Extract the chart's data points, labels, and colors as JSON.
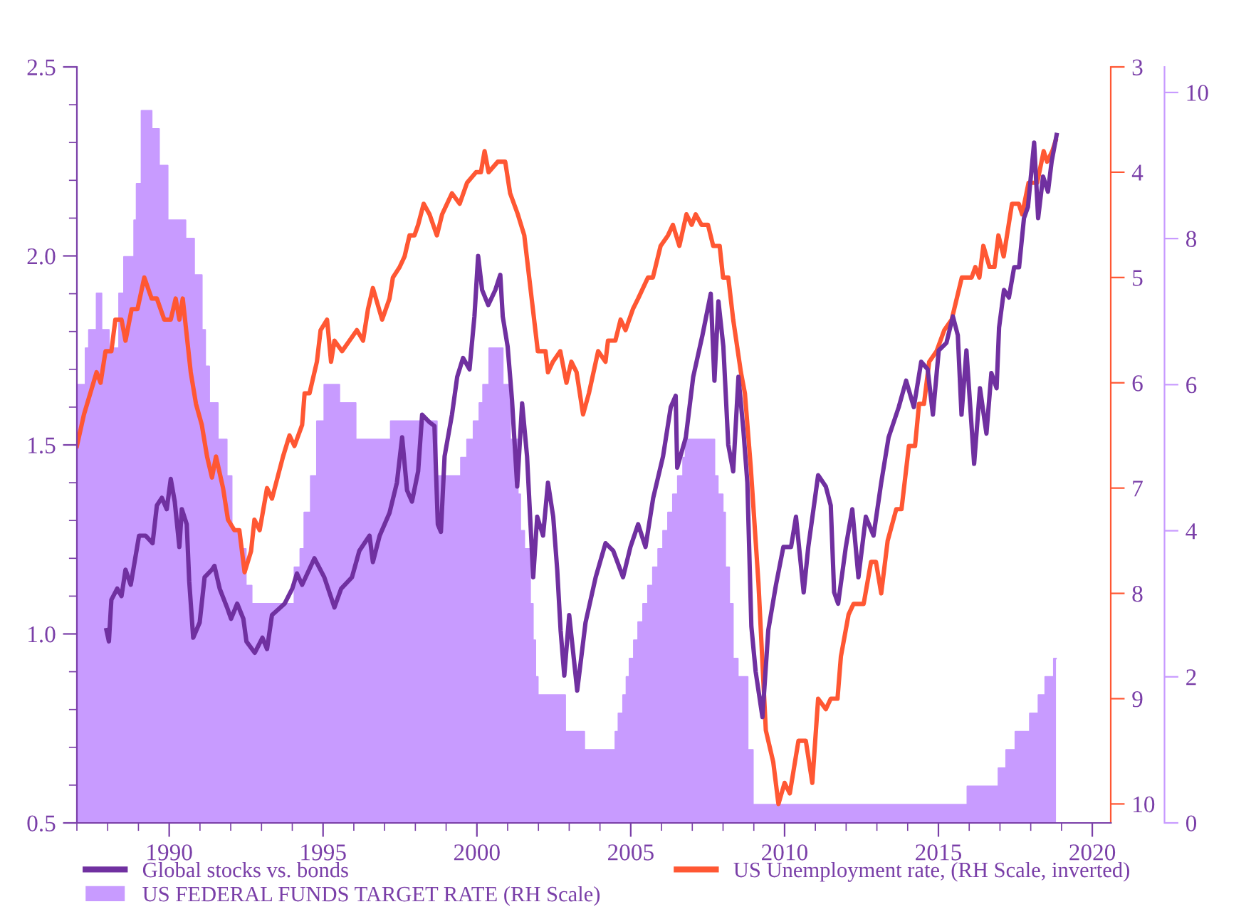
{
  "chart_data": {
    "type": "line",
    "xlim": [
      1987,
      2020.6
    ],
    "xticks": [
      {
        "value": 1987,
        "label": null
      },
      {
        "value": 1988,
        "label": null
      },
      {
        "value": 1989,
        "label": null
      },
      1990,
      {
        "value": 1991,
        "label": null
      },
      {
        "value": 1992,
        "label": null
      },
      {
        "value": 1993,
        "label": null
      },
      {
        "value": 1994,
        "label": null
      },
      1995,
      {
        "value": 1996,
        "label": null
      },
      {
        "value": 1997,
        "label": null
      },
      {
        "value": 1998,
        "label": null
      },
      {
        "value": 1999,
        "label": null
      },
      2000,
      {
        "value": 2001,
        "label": null
      },
      {
        "value": 2002,
        "label": null
      },
      {
        "value": 2003,
        "label": null
      },
      {
        "value": 2004,
        "label": null
      },
      2005,
      {
        "value": 2006,
        "label": null
      },
      {
        "value": 2007,
        "label": null
      },
      {
        "value": 2008,
        "label": null
      },
      {
        "value": 2009,
        "label": null
      },
      2010,
      {
        "value": 2011,
        "label": null
      },
      {
        "value": 2012,
        "label": null
      },
      {
        "value": 2013,
        "label": null
      },
      {
        "value": 2014,
        "label": null
      },
      2015,
      {
        "value": 2016,
        "label": null
      },
      {
        "value": 2017,
        "label": null
      },
      {
        "value": 2018,
        "label": null
      },
      {
        "value": 2019,
        "label": null
      },
      2020
    ],
    "ylim": [
      0.5,
      2.5
    ],
    "yticks": [
      {
        "value": 0.5,
        "label": "0.5"
      },
      {
        "value": 0.6,
        "label": null
      },
      {
        "value": 0.7,
        "label": null
      },
      {
        "value": 0.8,
        "label": null
      },
      {
        "value": 0.9,
        "label": null
      },
      {
        "value": 1.0,
        "label": "1.0"
      },
      {
        "value": 1.1,
        "label": null
      },
      {
        "value": 1.2,
        "label": null
      },
      {
        "value": 1.3,
        "label": null
      },
      {
        "value": 1.4,
        "label": null
      },
      {
        "value": 1.5,
        "label": "1.5"
      },
      {
        "value": 1.6,
        "label": null
      },
      {
        "value": 1.7,
        "label": null
      },
      {
        "value": 1.8,
        "label": null
      },
      {
        "value": 1.9,
        "label": null
      },
      {
        "value": 2.0,
        "label": "2.0"
      },
      {
        "value": 2.1,
        "label": null
      },
      {
        "value": 2.2,
        "label": null
      },
      {
        "value": 2.3,
        "label": null
      },
      {
        "value": 2.4,
        "label": null
      },
      {
        "value": 2.5,
        "label": "2.5"
      }
    ],
    "y2lim": [
      10.18,
      3
    ],
    "y2ticks": [
      3,
      4,
      5,
      6,
      7,
      8,
      9,
      10
    ],
    "y3lim": [
      0,
      10.35
    ],
    "y3ticks": [
      0,
      2,
      4,
      6,
      8,
      10
    ],
    "grid": false,
    "legend": "bottom",
    "series": [
      {
        "name": "Global stocks vs. bonds",
        "color": "#7030a0",
        "axis": "y",
        "x": [
          1987.96,
          1988.04,
          1988.12,
          1988.31,
          1988.45,
          1988.58,
          1988.75,
          1989.02,
          1989.23,
          1989.46,
          1989.6,
          1989.76,
          1989.92,
          1990.05,
          1990.18,
          1990.33,
          1990.41,
          1990.57,
          1990.65,
          1990.78,
          1990.99,
          1991.15,
          1991.39,
          1991.47,
          1991.64,
          1991.88,
          1992.01,
          1992.21,
          1992.41,
          1992.51,
          1992.78,
          1993.03,
          1993.18,
          1993.34,
          1993.75,
          1994.0,
          1994.15,
          1994.32,
          1994.72,
          1995.04,
          1995.37,
          1995.59,
          1995.94,
          1996.18,
          1996.51,
          1996.62,
          1996.84,
          1997.16,
          1997.4,
          1997.57,
          1997.73,
          1997.89,
          1998.09,
          1998.22,
          1998.46,
          1998.62,
          1998.73,
          1998.83,
          1998.95,
          1999.19,
          1999.36,
          1999.55,
          1999.76,
          1999.92,
          2000.04,
          2000.17,
          2000.37,
          2000.6,
          2000.76,
          2000.84,
          2001.0,
          2001.14,
          2001.31,
          2001.47,
          2001.63,
          2001.83,
          2001.96,
          2002.15,
          2002.31,
          2002.48,
          2002.61,
          2002.72,
          2002.84,
          2003.0,
          2003.26,
          2003.53,
          2003.86,
          2004.18,
          2004.43,
          2004.75,
          2004.99,
          2005.24,
          2005.48,
          2005.73,
          2006.05,
          2006.3,
          2006.46,
          2006.51,
          2006.79,
          2007.03,
          2007.33,
          2007.6,
          2007.72,
          2007.85,
          2008.01,
          2008.17,
          2008.33,
          2008.5,
          2008.66,
          2008.79,
          2008.92,
          2009.06,
          2009.28,
          2009.47,
          2009.72,
          2009.96,
          2010.21,
          2010.37,
          2010.62,
          2010.77,
          2011.09,
          2011.34,
          2011.5,
          2011.61,
          2011.74,
          2011.99,
          2012.2,
          2012.4,
          2012.64,
          2012.89,
          2013.14,
          2013.38,
          2013.71,
          2013.95,
          2014.2,
          2014.44,
          2014.65,
          2014.82,
          2015.01,
          2015.26,
          2015.47,
          2015.63,
          2015.75,
          2015.91,
          2016.16,
          2016.35,
          2016.56,
          2016.72,
          2016.89,
          2016.97,
          2017.13,
          2017.29,
          2017.46,
          2017.62,
          2017.78,
          2017.91,
          2018.11,
          2018.24,
          2018.4,
          2018.56,
          2018.68,
          2018.84
        ],
        "values": [
          1.01,
          0.98,
          1.09,
          1.12,
          1.1,
          1.17,
          1.13,
          1.26,
          1.26,
          1.24,
          1.34,
          1.36,
          1.33,
          1.41,
          1.35,
          1.23,
          1.33,
          1.29,
          1.14,
          0.99,
          1.03,
          1.15,
          1.17,
          1.18,
          1.12,
          1.07,
          1.04,
          1.08,
          1.04,
          0.98,
          0.95,
          0.99,
          0.96,
          1.05,
          1.08,
          1.12,
          1.16,
          1.13,
          1.2,
          1.15,
          1.07,
          1.12,
          1.15,
          1.22,
          1.26,
          1.19,
          1.26,
          1.32,
          1.4,
          1.52,
          1.38,
          1.35,
          1.43,
          1.58,
          1.56,
          1.55,
          1.29,
          1.27,
          1.47,
          1.58,
          1.68,
          1.73,
          1.7,
          1.84,
          2.0,
          1.91,
          1.87,
          1.91,
          1.95,
          1.84,
          1.76,
          1.62,
          1.39,
          1.61,
          1.47,
          1.15,
          1.31,
          1.26,
          1.4,
          1.31,
          1.17,
          1.01,
          0.89,
          1.05,
          0.85,
          1.03,
          1.15,
          1.24,
          1.22,
          1.15,
          1.23,
          1.29,
          1.23,
          1.36,
          1.47,
          1.6,
          1.63,
          1.44,
          1.52,
          1.68,
          1.79,
          1.9,
          1.67,
          1.88,
          1.76,
          1.5,
          1.43,
          1.68,
          1.54,
          1.4,
          1.02,
          0.9,
          0.78,
          1.01,
          1.13,
          1.23,
          1.23,
          1.31,
          1.11,
          1.23,
          1.42,
          1.39,
          1.34,
          1.11,
          1.08,
          1.23,
          1.33,
          1.15,
          1.31,
          1.26,
          1.4,
          1.52,
          1.6,
          1.67,
          1.6,
          1.72,
          1.7,
          1.58,
          1.75,
          1.77,
          1.84,
          1.79,
          1.58,
          1.75,
          1.45,
          1.65,
          1.53,
          1.69,
          1.65,
          1.81,
          1.91,
          1.89,
          1.97,
          1.97,
          2.1,
          2.13,
          2.3,
          2.1,
          2.21,
          2.17,
          2.25,
          2.32
        ]
      },
      {
        "name": "US FEDERAL FUNDS TARGET RATE (RH Scale)",
        "type": "area",
        "color": "#c89bff",
        "axis": "y3",
        "x": [
          1987.0,
          1987.28,
          1987.28,
          1987.39,
          1987.39,
          1987.64,
          1987.64,
          1987.8,
          1987.8,
          1988.04,
          1988.04,
          1988.37,
          1988.37,
          1988.53,
          1988.53,
          1988.86,
          1988.86,
          1988.94,
          1988.94,
          1989.1,
          1989.1,
          1989.43,
          1989.43,
          1989.67,
          1989.67,
          1989.95,
          1989.95,
          1990.53,
          1990.53,
          1990.81,
          1990.81,
          1991.06,
          1991.06,
          1991.17,
          1991.17,
          1991.3,
          1991.3,
          1991.58,
          1991.58,
          1991.87,
          1991.87,
          1992.03,
          1992.03,
          1992.28,
          1992.28,
          1992.49,
          1992.49,
          1992.68,
          1992.68,
          1994.07,
          1994.07,
          1994.26,
          1994.26,
          1994.39,
          1994.39,
          1994.6,
          1994.6,
          1994.8,
          1994.8,
          1995.04,
          1995.04,
          1995.53,
          1995.53,
          1996.06,
          1996.06,
          1997.2,
          1997.2,
          1998.7,
          1998.7,
          1999.48,
          1999.48,
          1999.68,
          1999.68,
          1999.89,
          1999.89,
          2000.08,
          2000.08,
          2000.2,
          2000.2,
          2000.4,
          2000.4,
          2000.84,
          2000.84,
          2001.08,
          2001.08,
          2001.33,
          2001.33,
          2001.41,
          2001.41,
          2001.54,
          2001.54,
          2001.73,
          2001.73,
          2001.82,
          2001.82,
          2001.9,
          2001.9,
          2001.98,
          2001.98,
          2002.87,
          2002.87,
          2003.49,
          2003.49,
          2004.5,
          2004.5,
          2004.6,
          2004.6,
          2004.75,
          2004.75,
          2004.86,
          2004.86,
          2004.96,
          2004.96,
          2005.1,
          2005.1,
          2005.24,
          2005.24,
          2005.4,
          2005.4,
          2005.56,
          2005.56,
          2005.72,
          2005.72,
          2005.89,
          2005.89,
          2006.05,
          2006.05,
          2006.21,
          2006.21,
          2006.37,
          2006.37,
          2006.53,
          2006.53,
          2006.7,
          2006.7,
          2006.78,
          2006.78,
          2007.72,
          2007.72,
          2007.83,
          2007.83,
          2007.99,
          2007.99,
          2008.07,
          2008.07,
          2008.2,
          2008.2,
          2008.32,
          2008.32,
          2008.48,
          2008.48,
          2008.8,
          2008.8,
          2008.97,
          2008.97,
          2015.94,
          2015.94,
          2016.95,
          2016.95,
          2017.2,
          2017.2,
          2017.5,
          2017.5,
          2017.97,
          2017.97,
          2018.25,
          2018.25,
          2018.47,
          2018.47,
          2018.75,
          2018.75,
          2018.82
        ],
        "values": [
          6.0,
          6.0,
          6.5,
          6.5,
          6.75,
          6.75,
          7.25,
          7.25,
          6.75,
          6.75,
          6.5,
          6.5,
          7.25,
          7.25,
          7.75,
          7.75,
          8.25,
          8.25,
          8.75,
          8.75,
          9.75,
          9.75,
          9.5,
          9.5,
          9.0,
          9.0,
          8.25,
          8.25,
          8.0,
          8.0,
          7.5,
          7.5,
          6.75,
          6.75,
          6.25,
          6.25,
          5.75,
          5.75,
          5.25,
          5.25,
          4.75,
          4.75,
          4.0,
          4.0,
          3.75,
          3.75,
          3.25,
          3.25,
          3.0,
          3.0,
          3.5,
          3.5,
          3.75,
          3.75,
          4.25,
          4.25,
          4.75,
          4.75,
          5.5,
          5.5,
          6.0,
          6.0,
          5.75,
          5.75,
          5.25,
          5.25,
          5.5,
          5.5,
          4.75,
          4.75,
          5.0,
          5.0,
          5.25,
          5.25,
          5.5,
          5.5,
          5.75,
          5.75,
          6.0,
          6.0,
          6.5,
          6.5,
          6.0,
          6.0,
          5.25,
          5.25,
          4.5,
          4.5,
          4.0,
          4.0,
          3.75,
          3.75,
          3.0,
          3.0,
          2.5,
          2.5,
          2.0,
          2.0,
          1.75,
          1.75,
          1.25,
          1.25,
          1.0,
          1.0,
          1.25,
          1.25,
          1.5,
          1.5,
          1.75,
          1.75,
          2.0,
          2.0,
          2.25,
          2.25,
          2.5,
          2.5,
          2.75,
          2.75,
          3.0,
          3.0,
          3.25,
          3.25,
          3.5,
          3.5,
          3.75,
          3.75,
          4.0,
          4.0,
          4.25,
          4.25,
          4.5,
          4.5,
          4.75,
          4.75,
          5.0,
          5.0,
          5.25,
          5.25,
          4.75,
          4.75,
          4.5,
          4.5,
          4.25,
          4.25,
          3.5,
          3.5,
          3.0,
          3.0,
          2.25,
          2.25,
          2.0,
          2.0,
          1.0,
          1.0,
          0.25,
          0.25,
          0.5,
          0.5,
          0.75,
          0.75,
          1.0,
          1.0,
          1.25,
          1.25,
          1.5,
          1.5,
          1.75,
          1.75,
          2.0,
          2.0,
          2.25,
          2.25
        ]
      },
      {
        "name": "US Unemployment rate, (RH Scale, inverted)",
        "color": "#ff5733",
        "axis": "y2",
        "x": [
          1987.0,
          1987.23,
          1987.64,
          1987.77,
          1987.93,
          1988.12,
          1988.25,
          1988.45,
          1988.58,
          1988.78,
          1988.97,
          1989.19,
          1989.43,
          1989.6,
          1989.84,
          1990.05,
          1990.21,
          1990.33,
          1990.44,
          1990.7,
          1990.87,
          1991.06,
          1991.23,
          1991.39,
          1991.52,
          1991.75,
          1991.91,
          1992.12,
          1992.28,
          1992.45,
          1992.66,
          1992.77,
          1992.94,
          1993.18,
          1993.34,
          1993.7,
          1993.91,
          1994.07,
          1994.32,
          1994.4,
          1994.56,
          1994.8,
          1994.92,
          1995.13,
          1995.26,
          1995.37,
          1995.62,
          1995.86,
          1996.1,
          1996.3,
          1996.46,
          1996.62,
          1996.92,
          1997.16,
          1997.27,
          1997.49,
          1997.65,
          1997.81,
          1997.97,
          1998.09,
          1998.27,
          1998.46,
          1998.7,
          1998.87,
          1999.19,
          1999.44,
          1999.68,
          1999.97,
          2000.13,
          2000.25,
          2000.38,
          2000.68,
          2000.92,
          2001.08,
          2001.33,
          2001.54,
          2001.66,
          2001.82,
          2001.98,
          2002.23,
          2002.31,
          2002.47,
          2002.71,
          2002.91,
          2003.07,
          2003.24,
          2003.45,
          2003.64,
          2003.94,
          2004.18,
          2004.26,
          2004.5,
          2004.67,
          2004.83,
          2005.07,
          2005.24,
          2005.56,
          2005.72,
          2005.97,
          2006.21,
          2006.37,
          2006.58,
          2006.81,
          2006.98,
          2007.11,
          2007.3,
          2007.51,
          2007.68,
          2007.89,
          2008.0,
          2008.17,
          2008.33,
          2008.58,
          2008.71,
          2008.9,
          2009.15,
          2009.39,
          2009.63,
          2009.8,
          2010.0,
          2010.17,
          2010.45,
          2010.69,
          2010.9,
          2011.09,
          2011.34,
          2011.5,
          2011.72,
          2011.83,
          2012.08,
          2012.24,
          2012.57,
          2012.81,
          2012.97,
          2013.14,
          2013.35,
          2013.63,
          2013.8,
          2014.04,
          2014.24,
          2014.37,
          2014.53,
          2014.7,
          2014.94,
          2015.19,
          2015.43,
          2015.76,
          2016.08,
          2016.2,
          2016.33,
          2016.46,
          2016.66,
          2016.82,
          2016.95,
          2017.12,
          2017.39,
          2017.61,
          2017.72,
          2017.93,
          2018.21,
          2018.42,
          2018.53,
          2018.7,
          2018.81
        ],
        "values": [
          6.6,
          6.3,
          5.9,
          6.0,
          5.7,
          5.7,
          5.4,
          5.4,
          5.6,
          5.3,
          5.3,
          5.0,
          5.2,
          5.2,
          5.4,
          5.4,
          5.2,
          5.4,
          5.2,
          5.9,
          6.2,
          6.4,
          6.7,
          6.9,
          6.7,
          7.0,
          7.3,
          7.4,
          7.4,
          7.8,
          7.6,
          7.3,
          7.4,
          7.0,
          7.1,
          6.7,
          6.5,
          6.6,
          6.4,
          6.1,
          6.1,
          5.8,
          5.5,
          5.4,
          5.8,
          5.6,
          5.7,
          5.6,
          5.5,
          5.6,
          5.3,
          5.1,
          5.4,
          5.2,
          5.0,
          4.9,
          4.8,
          4.6,
          4.6,
          4.5,
          4.3,
          4.4,
          4.6,
          4.4,
          4.2,
          4.3,
          4.1,
          4.0,
          4.0,
          3.8,
          4.0,
          3.9,
          3.9,
          4.2,
          4.4,
          4.6,
          4.9,
          5.3,
          5.7,
          5.7,
          5.9,
          5.8,
          5.7,
          6.0,
          5.8,
          5.9,
          6.3,
          6.1,
          5.7,
          5.8,
          5.6,
          5.6,
          5.4,
          5.5,
          5.3,
          5.2,
          5.0,
          5.0,
          4.7,
          4.6,
          4.5,
          4.7,
          4.4,
          4.5,
          4.4,
          4.5,
          4.5,
          4.7,
          4.7,
          5.0,
          5.0,
          5.4,
          5.9,
          6.1,
          6.8,
          7.9,
          9.3,
          9.6,
          10.0,
          9.8,
          9.9,
          9.4,
          9.4,
          9.8,
          9.0,
          9.1,
          9.0,
          9.0,
          8.6,
          8.2,
          8.1,
          8.1,
          7.7,
          7.7,
          8.0,
          7.5,
          7.2,
          7.2,
          6.6,
          6.6,
          6.2,
          6.2,
          5.8,
          5.7,
          5.5,
          5.4,
          5.0,
          5.0,
          4.9,
          5.0,
          4.7,
          4.9,
          4.9,
          4.6,
          4.8,
          4.3,
          4.3,
          4.4,
          4.1,
          4.1,
          3.8,
          3.9,
          3.8,
          3.7
        ]
      }
    ]
  }
}
